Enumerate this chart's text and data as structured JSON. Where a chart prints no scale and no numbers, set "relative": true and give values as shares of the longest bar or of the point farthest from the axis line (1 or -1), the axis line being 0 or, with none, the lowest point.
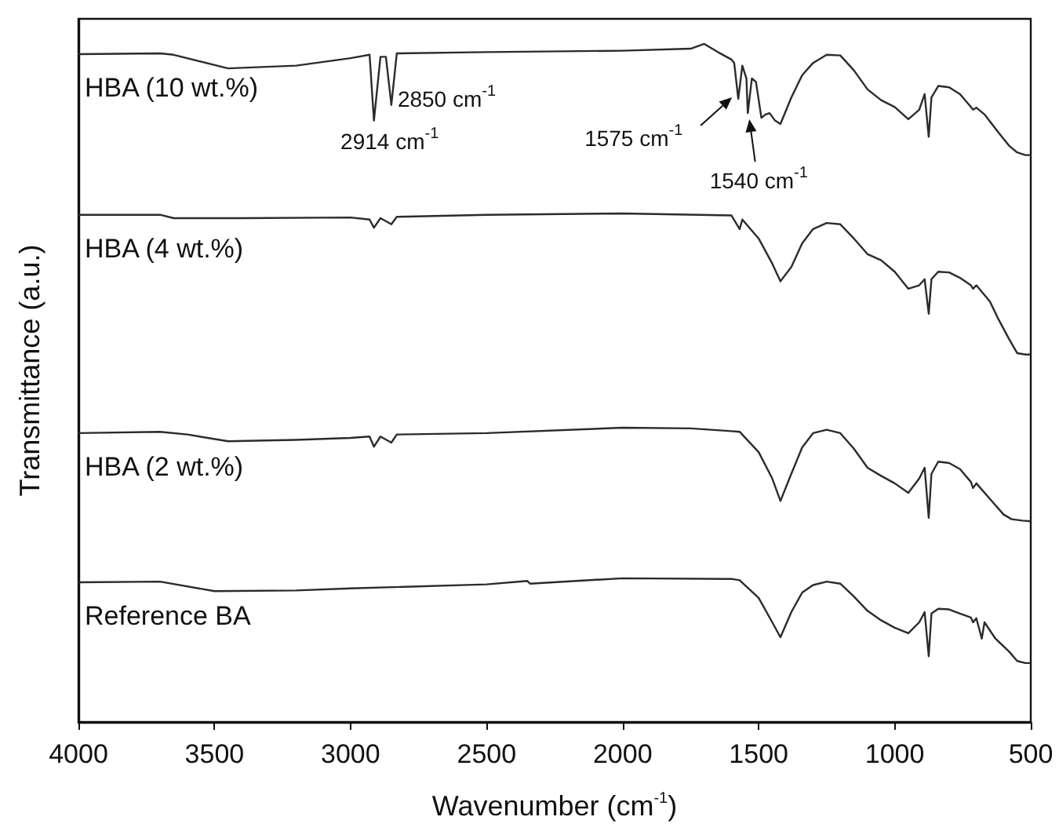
{
  "chart_data": {
    "type": "line",
    "relative": true,
    "xlabel": "Wavenumber (cm$^{-1}$)",
    "ylabel": "Transmittance (a.u.)",
    "xlim": [
      4000,
      500
    ],
    "xticks": [
      4000,
      3500,
      3000,
      2500,
      2000,
      1500,
      1000,
      500
    ],
    "grid": false,
    "legend": false,
    "series": [
      {
        "name": "HBA (10 wt.%)",
        "color": "#2b2b2b",
        "x": [
          4000,
          3700,
          3650,
          3450,
          3200,
          3000,
          2930,
          2914,
          2890,
          2870,
          2850,
          2830,
          2500,
          2000,
          1750,
          1700,
          1650,
          1600,
          1590,
          1575,
          1560,
          1545,
          1540,
          1525,
          1510,
          1490,
          1475,
          1460,
          1440,
          1420,
          1380,
          1340,
          1300,
          1250,
          1200,
          1150,
          1100,
          1050,
          1000,
          950,
          910,
          890,
          875,
          865,
          840,
          800,
          760,
          720,
          712,
          700,
          670,
          620,
          580,
          550,
          520,
          500
        ],
        "values": [
          0.985,
          0.986,
          0.984,
          0.964,
          0.968,
          0.979,
          0.984,
          0.887,
          0.981,
          0.981,
          0.91,
          0.986,
          0.988,
          0.99,
          0.993,
          1,
          0.988,
          0.977,
          0.972,
          0.919,
          0.968,
          0.949,
          0.898,
          0.949,
          0.944,
          0.891,
          0.896,
          0.898,
          0.887,
          0.882,
          0.921,
          0.954,
          0.972,
          0.984,
          0.983,
          0.961,
          0.933,
          0.917,
          0.907,
          0.889,
          0.903,
          0.926,
          0.863,
          0.921,
          0.938,
          0.936,
          0.926,
          0.907,
          0.903,
          0.906,
          0.896,
          0.87,
          0.85,
          0.84,
          0.836,
          0.836
        ]
      },
      {
        "name": "HBA (4 wt.%)",
        "color": "#2b2b2b",
        "x": [
          4000,
          3700,
          3650,
          3400,
          3000,
          2930,
          2914,
          2890,
          2850,
          2830,
          2500,
          2000,
          1600,
          1570,
          1560,
          1500,
          1450,
          1420,
          1380,
          1340,
          1300,
          1250,
          1200,
          1150,
          1100,
          1050,
          1000,
          950,
          910,
          890,
          875,
          865,
          840,
          800,
          760,
          720,
          712,
          700,
          650,
          620,
          580,
          550,
          520,
          500
        ],
        "values": [
          0.748,
          0.748,
          0.743,
          0.743,
          0.744,
          0.741,
          0.729,
          0.743,
          0.734,
          0.745,
          0.748,
          0.75,
          0.747,
          0.727,
          0.741,
          0.713,
          0.676,
          0.65,
          0.671,
          0.706,
          0.727,
          0.736,
          0.734,
          0.713,
          0.69,
          0.681,
          0.664,
          0.639,
          0.644,
          0.653,
          0.602,
          0.653,
          0.664,
          0.663,
          0.655,
          0.644,
          0.639,
          0.644,
          0.62,
          0.595,
          0.565,
          0.544,
          0.542,
          0.542
        ]
      },
      {
        "name": "HBA (2 wt.%)",
        "color": "#2b2b2b",
        "x": [
          4000,
          3700,
          3600,
          3450,
          3200,
          3000,
          2930,
          2914,
          2890,
          2850,
          2830,
          2500,
          2000,
          1750,
          1600,
          1570,
          1500,
          1450,
          1420,
          1380,
          1340,
          1300,
          1250,
          1200,
          1150,
          1100,
          1050,
          1000,
          950,
          910,
          890,
          875,
          865,
          840,
          800,
          760,
          720,
          712,
          700,
          650,
          600,
          570,
          530,
          500
        ],
        "values": [
          0.426,
          0.428,
          0.424,
          0.414,
          0.416,
          0.419,
          0.421,
          0.406,
          0.421,
          0.412,
          0.424,
          0.426,
          0.434,
          0.433,
          0.429,
          0.428,
          0.398,
          0.359,
          0.326,
          0.366,
          0.405,
          0.426,
          0.431,
          0.426,
          0.403,
          0.375,
          0.363,
          0.352,
          0.338,
          0.359,
          0.375,
          0.301,
          0.366,
          0.384,
          0.382,
          0.373,
          0.354,
          0.345,
          0.352,
          0.329,
          0.306,
          0.299,
          0.297,
          0.296
        ]
      },
      {
        "name": "Reference BA",
        "color": "#2b2b2b",
        "x": [
          4000,
          3700,
          3500,
          3200,
          3000,
          2500,
          2350,
          2340,
          2000,
          1600,
          1570,
          1500,
          1450,
          1420,
          1380,
          1340,
          1300,
          1250,
          1200,
          1150,
          1100,
          1050,
          1000,
          950,
          910,
          890,
          875,
          865,
          840,
          800,
          760,
          720,
          712,
          700,
          680,
          670,
          630,
          580,
          550,
          520,
          500
        ],
        "values": [
          0.206,
          0.207,
          0.193,
          0.194,
          0.197,
          0.203,
          0.208,
          0.204,
          0.212,
          0.211,
          0.209,
          0.183,
          0.147,
          0.125,
          0.162,
          0.191,
          0.202,
          0.207,
          0.204,
          0.185,
          0.164,
          0.15,
          0.139,
          0.131,
          0.147,
          0.162,
          0.097,
          0.16,
          0.167,
          0.166,
          0.16,
          0.154,
          0.147,
          0.153,
          0.123,
          0.147,
          0.123,
          0.104,
          0.09,
          0.087,
          0.087
        ]
      }
    ],
    "annotations": [
      {
        "text": "2914 cm$^{-1}$",
        "x": 2914,
        "y": 0.887
      },
      {
        "text": "2850 cm$^{-1}$",
        "x": 2850,
        "y": 0.91
      },
      {
        "text": "1575 cm$^{-1}$",
        "x": 1575,
        "y": 0.919
      },
      {
        "text": "1540 cm$^{-1}$",
        "x": 1540,
        "y": 0.898
      }
    ]
  }
}
